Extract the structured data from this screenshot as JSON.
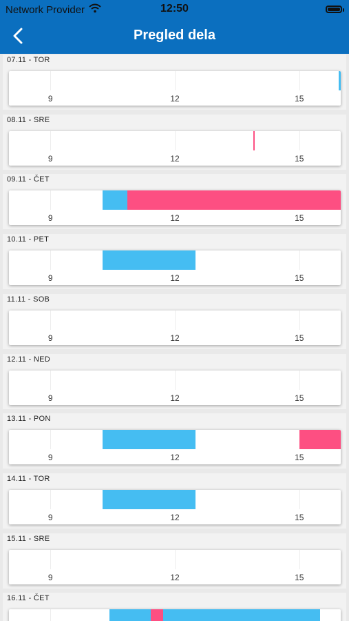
{
  "status_bar": {
    "carrier": "Network Provider",
    "time": "12:50"
  },
  "header": {
    "title": "Pregled dela",
    "back_icon": "chevron-left-icon"
  },
  "timeline": {
    "hour_range": [
      8,
      16
    ],
    "ticks": [
      "9",
      "12",
      "15"
    ],
    "colors": {
      "work": "#45bdf2",
      "break": "#fd4f82"
    }
  },
  "days": [
    {
      "label": "07.11 - TOR",
      "segments": [
        {
          "type": "work",
          "start": 15.95,
          "end": 16.0
        }
      ]
    },
    {
      "label": "08.11 - SRE",
      "segments": [
        {
          "type": "break",
          "start": 13.9,
          "end": 13.93
        }
      ]
    },
    {
      "label": "09.11 - ČET",
      "segments": [
        {
          "type": "work",
          "start": 10.25,
          "end": 10.85
        },
        {
          "type": "break",
          "start": 10.85,
          "end": 16.0
        }
      ]
    },
    {
      "label": "10.11 - PET",
      "segments": [
        {
          "type": "work",
          "start": 10.25,
          "end": 12.5
        }
      ]
    },
    {
      "label": "11.11 - SOB",
      "segments": []
    },
    {
      "label": "12.11 - NED",
      "segments": []
    },
    {
      "label": "13.11 - PON",
      "segments": [
        {
          "type": "work",
          "start": 10.25,
          "end": 12.5
        },
        {
          "type": "break",
          "start": 15.0,
          "end": 16.0
        }
      ]
    },
    {
      "label": "14.11 - TOR",
      "segments": [
        {
          "type": "work",
          "start": 10.25,
          "end": 12.5
        }
      ]
    },
    {
      "label": "15.11 - SRE",
      "segments": []
    },
    {
      "label": "16.11 - ČET",
      "segments": [
        {
          "type": "work",
          "start": 10.42,
          "end": 11.42
        },
        {
          "type": "break",
          "start": 11.42,
          "end": 11.72
        },
        {
          "type": "work",
          "start": 11.72,
          "end": 15.5
        }
      ]
    }
  ]
}
